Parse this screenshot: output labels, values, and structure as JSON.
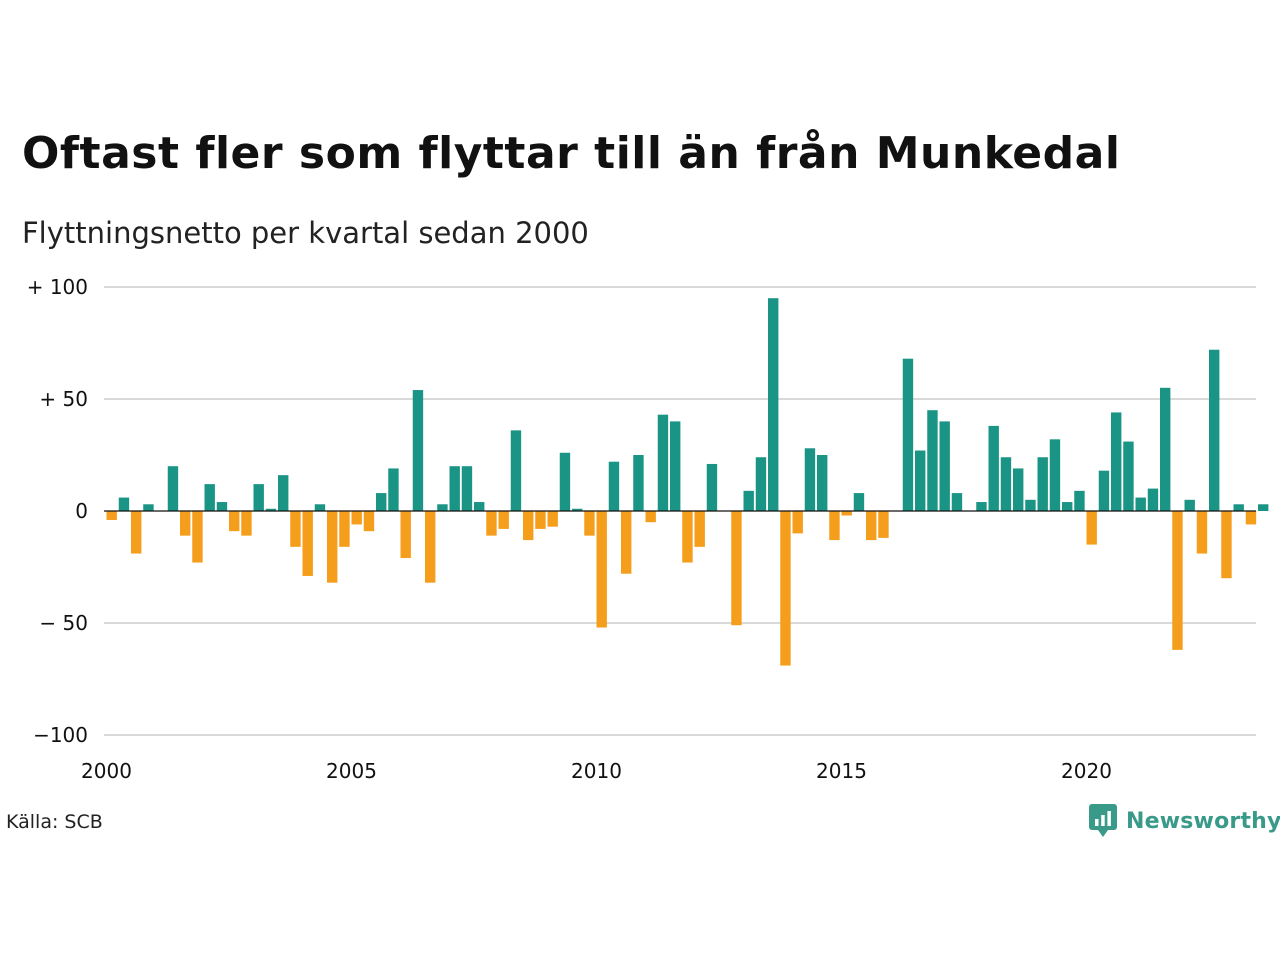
{
  "chart_data": {
    "type": "bar",
    "title": "Oftast fler som flyttar till än från Munkedal",
    "subtitle": "Flyttningsnetto per kvartal sedan 2000",
    "xlabel": "",
    "ylabel": "",
    "ylim": [
      -100,
      100
    ],
    "y_ticks": [
      {
        "value": 100,
        "label": "+ 100"
      },
      {
        "value": 50,
        "label": "+  50"
      },
      {
        "value": 0,
        "label": "0"
      },
      {
        "value": -50,
        "label": "− 50"
      },
      {
        "value": -100,
        "label": "−100"
      }
    ],
    "x_ticks": [
      {
        "value": "2000",
        "label": "2000"
      },
      {
        "value": "2005",
        "label": "2005"
      },
      {
        "value": "2010",
        "label": "2010"
      },
      {
        "value": "2015",
        "label": "2015"
      },
      {
        "value": "2020",
        "label": "2020"
      }
    ],
    "grid": true,
    "colors": {
      "positive": "#1a9485",
      "negative": "#f59e1b",
      "grid": "#d9d9d9",
      "zero_line": "#111111"
    },
    "categories": [
      "2000 K1",
      "2000 K2",
      "2000 K3",
      "2000 K4",
      "2001 K1",
      "2001 K2",
      "2001 K3",
      "2001 K4",
      "2002 K1",
      "2002 K2",
      "2002 K3",
      "2002 K4",
      "2003 K1",
      "2003 K2",
      "2003 K3",
      "2003 K4",
      "2004 K1",
      "2004 K2",
      "2004 K3",
      "2004 K4",
      "2005 K1",
      "2005 K2",
      "2005 K3",
      "2005 K4",
      "2006 K1",
      "2006 K2",
      "2006 K3",
      "2006 K4",
      "2007 K1",
      "2007 K2",
      "2007 K3",
      "2007 K4",
      "2008 K1",
      "2008 K2",
      "2008 K3",
      "2008 K4",
      "2009 K1",
      "2009 K2",
      "2009 K3",
      "2009 K4",
      "2010 K1",
      "2010 K2",
      "2010 K3",
      "2010 K4",
      "2011 K1",
      "2011 K2",
      "2011 K3",
      "2011 K4",
      "2012 K1",
      "2012 K2",
      "2012 K3",
      "2012 K4",
      "2013 K1",
      "2013 K2",
      "2013 K3",
      "2013 K4",
      "2014 K1",
      "2014 K2",
      "2014 K3",
      "2014 K4",
      "2015 K1",
      "2015 K2",
      "2015 K3",
      "2015 K4",
      "2016 K1",
      "2016 K2",
      "2016 K3",
      "2016 K4",
      "2017 K1",
      "2017 K2",
      "2017 K3",
      "2017 K4",
      "2018 K1",
      "2018 K2",
      "2018 K3",
      "2018 K4",
      "2019 K1",
      "2019 K2",
      "2019 K3",
      "2019 K4",
      "2020 K1",
      "2020 K2",
      "2020 K3",
      "2020 K4",
      "2021 K1",
      "2021 K2",
      "2021 K3",
      "2021 K4",
      "2022 K1",
      "2022 K2",
      "2022 K3",
      "2022 K4",
      "2023 K1",
      "2023 K2",
      "2023 K3"
    ],
    "values": [
      -4,
      6,
      -19,
      3,
      0,
      20,
      -11,
      -23,
      12,
      4,
      -9,
      -11,
      12,
      1,
      16,
      -16,
      -29,
      3,
      -32,
      -16,
      -6,
      -9,
      8,
      19,
      -21,
      54,
      -32,
      3,
      20,
      20,
      4,
      -11,
      -8,
      36,
      -13,
      -8,
      -7,
      26,
      1,
      -11,
      -52,
      22,
      -28,
      25,
      -5,
      43,
      40,
      -23,
      -16,
      21,
      0,
      -51,
      9,
      24,
      95,
      -69,
      -10,
      28,
      25,
      -13,
      -2,
      8,
      -13,
      -12,
      0,
      68,
      27,
      45,
      40,
      8,
      0,
      4,
      38,
      24,
      19,
      5,
      24,
      32,
      4,
      9,
      -15,
      18,
      44,
      31,
      6,
      10,
      55,
      -62,
      5,
      -19,
      72,
      -30,
      3,
      -6,
      3
    ]
  },
  "footer": {
    "source": "Källa: SCB",
    "brand": "Newsworthy"
  },
  "icons": {
    "brand_logo": "newsworthy-logo-icon"
  }
}
